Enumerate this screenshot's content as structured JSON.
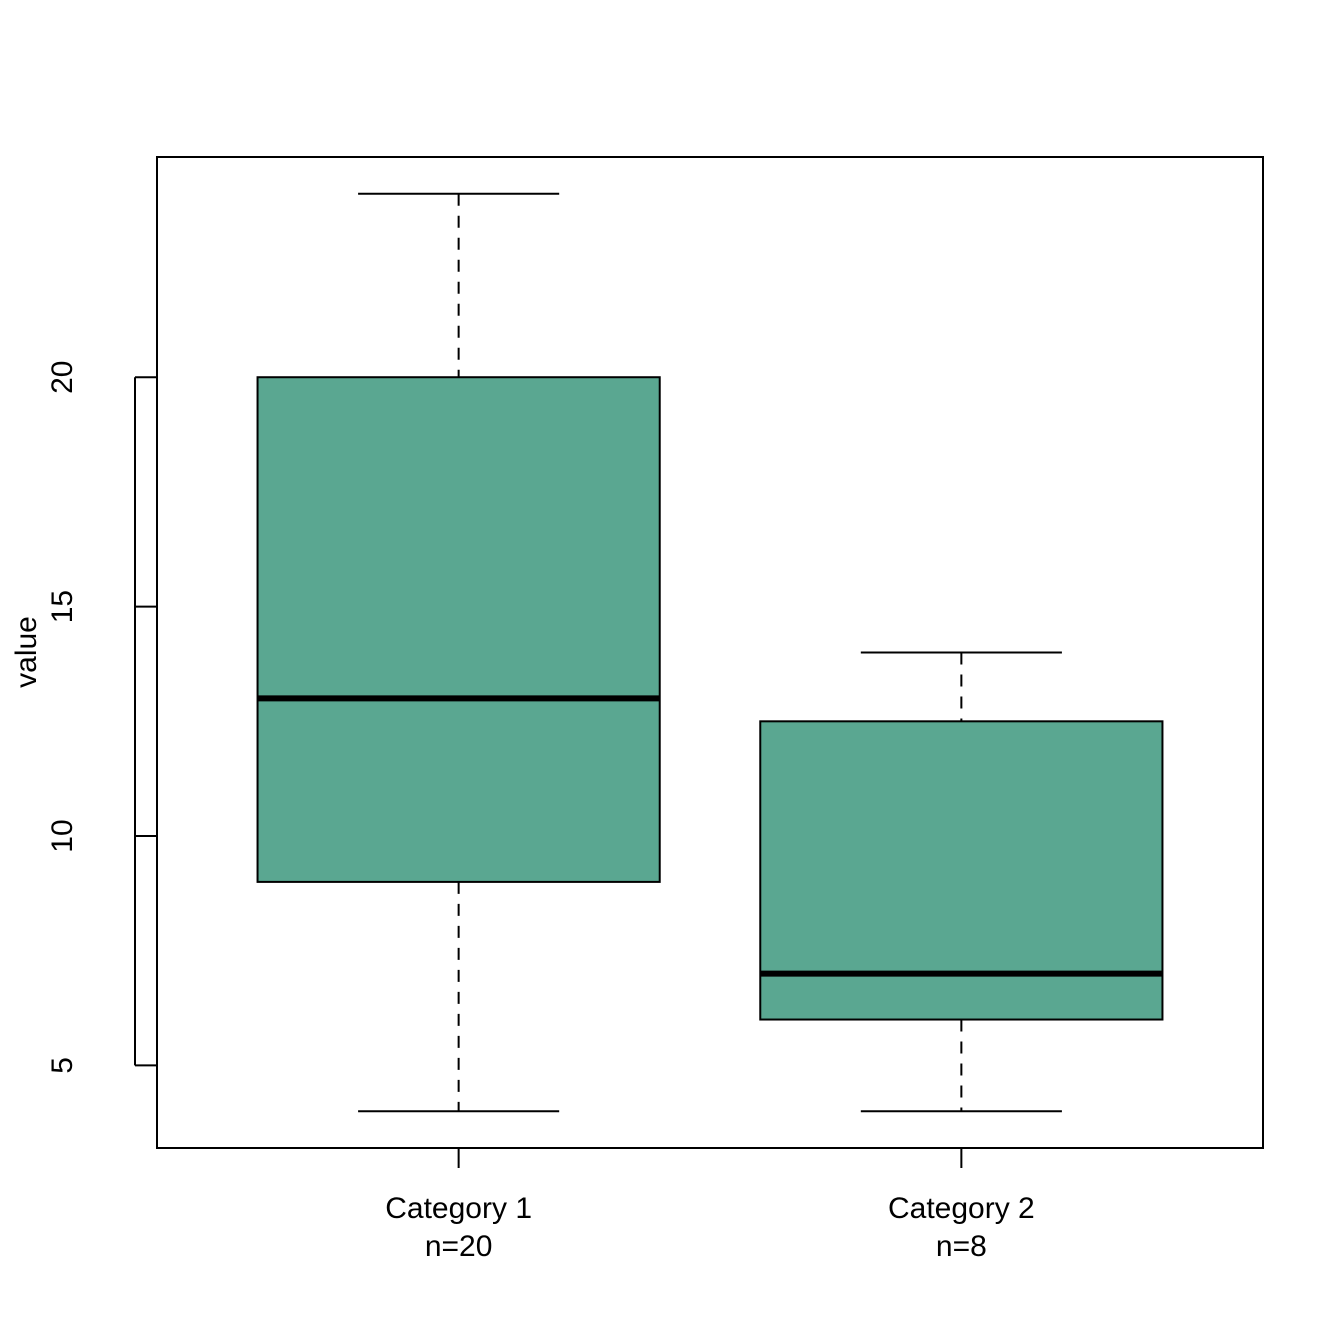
{
  "chart_data": {
    "type": "boxplot",
    "title": "",
    "xlabel": "",
    "ylabel": "value",
    "ylim": [
      3.2,
      24.8
    ],
    "yticks": [
      5,
      10,
      15,
      20
    ],
    "grid": false,
    "box_color": "#5aa791",
    "categories": [
      "Category 1",
      "Category 2"
    ],
    "counts": [
      "n=20",
      "n=8"
    ],
    "boxes": [
      {
        "category": "Category 1",
        "whisker_low": 4,
        "q1": 9,
        "median": 13,
        "q3": 20,
        "whisker_high": 24
      },
      {
        "category": "Category 2",
        "whisker_low": 4,
        "q1": 6,
        "median": 7,
        "q3": 12.5,
        "whisker_high": 14
      }
    ]
  }
}
